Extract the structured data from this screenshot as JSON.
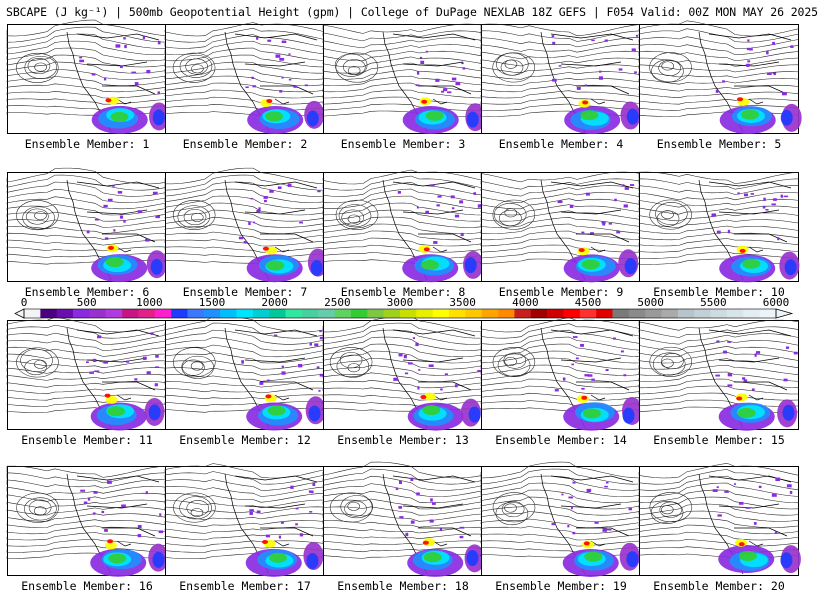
{
  "title": "SBCAPE (J kg⁻¹) | 500mb Geopotential Height (gpm) | College of DuPage NEXLAB 18Z GEFS | F054 Valid: 00Z MON MAY 26 2025",
  "members": [
    "Ensemble Member: 1",
    "Ensemble Member: 2",
    "Ensemble Member: 3",
    "Ensemble Member: 4",
    "Ensemble Member: 5",
    "Ensemble Member: 6",
    "Ensemble Member: 7",
    "Ensemble Member: 8",
    "Ensemble Member: 9",
    "Ensemble Member: 10",
    "Ensemble Member: 11",
    "Ensemble Member: 12",
    "Ensemble Member: 13",
    "Ensemble Member: 14",
    "Ensemble Member: 15",
    "Ensemble Member: 16",
    "Ensemble Member: 17",
    "Ensemble Member: 18",
    "Ensemble Member: 19",
    "Ensemble Member: 20"
  ],
  "colorbar": {
    "labels": [
      "0",
      "500",
      "1000",
      "1500",
      "2000",
      "2500",
      "3000",
      "3500",
      "4000",
      "4500",
      "5000",
      "5500",
      "6000"
    ],
    "min": 0,
    "max": 6000,
    "colors": [
      "#f4f4f4",
      "#4b0082",
      "#6a0dad",
      "#8a2be2",
      "#9932cc",
      "#b03ae0",
      "#c71585",
      "#e0218a",
      "#ff1dce",
      "#1e3cff",
      "#3c78ff",
      "#1e90ff",
      "#00bfff",
      "#00e5ff",
      "#00ced1",
      "#00c896",
      "#2ee8a0",
      "#48d1a0",
      "#66cdaa",
      "#5fd35f",
      "#32cd32",
      "#7cc840",
      "#a0d020",
      "#c8e000",
      "#e8f000",
      "#ffff00",
      "#ffe000",
      "#ffc800",
      "#ffa500",
      "#ff8c00",
      "#c81e1e",
      "#a00000",
      "#d00000",
      "#ff0000",
      "#ff3030",
      "#e00000",
      "#7a7a7a",
      "#8a8a8a",
      "#9a9a9a",
      "#aaaaaa",
      "#b8c4cc",
      "#c4d0d8",
      "#cfdbe2",
      "#d8e4ea",
      "#e2eef4",
      "#ecf6fa"
    ]
  }
}
